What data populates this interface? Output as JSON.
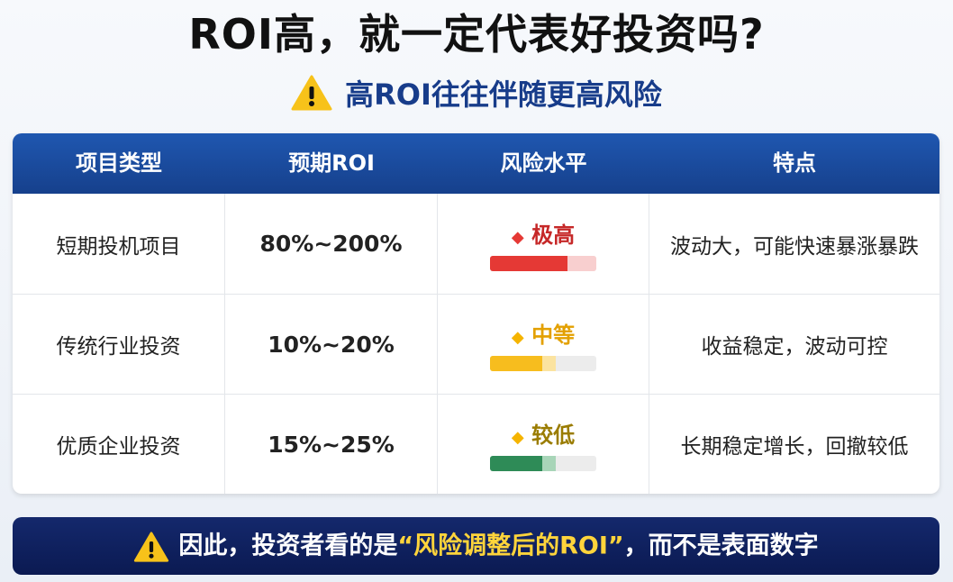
{
  "title": "ROI高，就一定代表好投资吗?",
  "subtitle": "高ROI往往伴随更高风险",
  "table": {
    "header": [
      "项目类型",
      "预期ROI",
      "风险水平",
      "特点"
    ],
    "rows": [
      [
        "短期投机项目",
        "80%~200%",
        "极高",
        "波动大，可能快速暴涨暴跌"
      ],
      [
        "传统行业投资",
        "10%~20%",
        "中等",
        "收益稳定，波动可控"
      ],
      [
        "优质企业投资",
        "15%~25%",
        "较低",
        "长期稳定增长，回撤较低"
      ]
    ]
  },
  "footer": {
    "before": "因此，投资者看的是",
    "highlight": "“风险调整后的ROI”",
    "after": "，而不是表面数字"
  }
}
